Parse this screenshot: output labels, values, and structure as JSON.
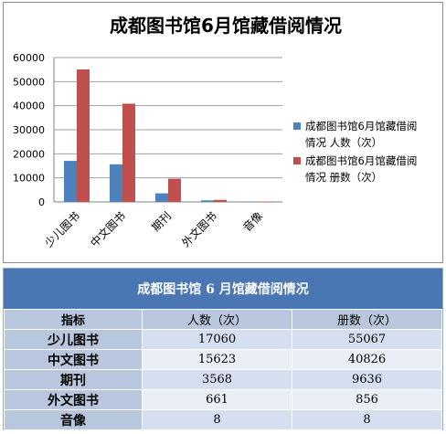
{
  "chart_data": {
    "type": "bar",
    "title": "成都图书馆6月馆藏借阅情况",
    "categories": [
      "少儿图书",
      "中文图书",
      "期刊",
      "外文图书",
      "音像"
    ],
    "series": [
      {
        "name": "成都图书馆6月馆藏借阅情况 人数（次）",
        "values": [
          17060,
          15623,
          3568,
          661,
          8
        ],
        "color": "#4f81bd"
      },
      {
        "name": "成都图书馆6月馆藏借阅情况 册数（次）",
        "values": [
          55067,
          40826,
          9636,
          856,
          8
        ],
        "color": "#c0504d"
      }
    ],
    "ylim": [
      0,
      60000
    ],
    "yticks": [
      "0",
      "10000",
      "20000",
      "30000",
      "40000",
      "50000",
      "60000"
    ],
    "grid": true,
    "legend": "right"
  },
  "legend_lines": [
    [
      "成都图书馆6月馆藏借阅",
      "情况 人数（次）"
    ],
    [
      "成都图书馆6月馆藏借阅",
      "情况 册数（次）"
    ]
  ],
  "table": {
    "title": "成都图书馆 6 月馆藏借阅情况",
    "headers": [
      "指标",
      "人数（次）",
      "册数（次）"
    ],
    "rows": [
      {
        "label": "少儿图书",
        "people": "17060",
        "volumes": "55067"
      },
      {
        "label": "中文图书",
        "people": "15623",
        "volumes": "40826"
      },
      {
        "label": "期刊",
        "people": "3568",
        "volumes": "9636"
      },
      {
        "label": "外文图书",
        "people": "661",
        "volumes": "856"
      },
      {
        "label": "音像",
        "people": "8",
        "volumes": "8"
      }
    ]
  }
}
